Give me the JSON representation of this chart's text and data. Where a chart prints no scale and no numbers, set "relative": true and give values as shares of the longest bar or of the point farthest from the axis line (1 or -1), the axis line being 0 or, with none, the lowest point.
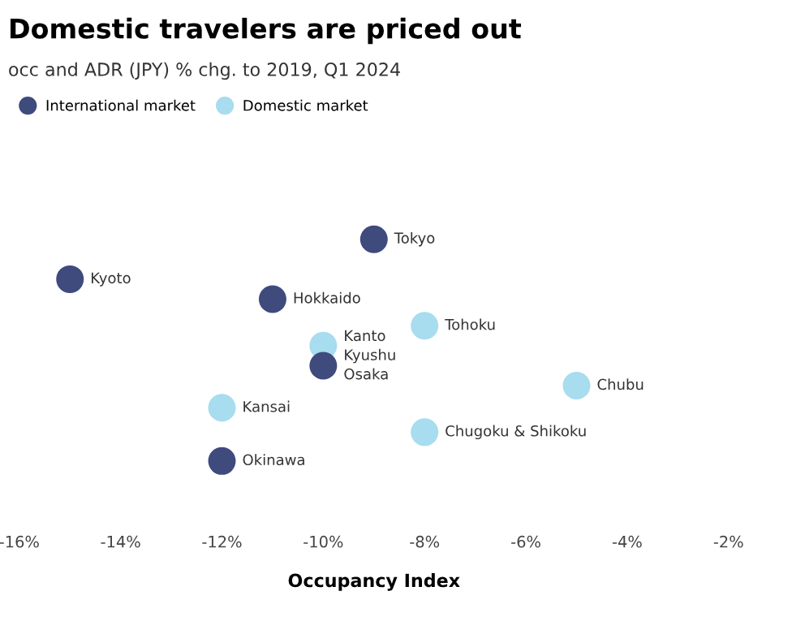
{
  "chart_data": {
    "type": "scatter",
    "title": "Domestic travelers are priced out",
    "subtitle": "occ and ADR (JPY) % chg. to 2019, Q1 2024",
    "xlabel": "Occupancy Index",
    "relative": true,
    "marker": "circle",
    "legend": "top left",
    "grid": false,
    "xlim": [
      -16,
      -2
    ],
    "xticks": [
      {
        "value": -16,
        "label": "-16%"
      },
      {
        "value": -14,
        "label": "-14%"
      },
      {
        "value": -12,
        "label": "-12%"
      },
      {
        "value": -10,
        "label": "-10%"
      },
      {
        "value": -8,
        "label": "-8%"
      },
      {
        "value": -6,
        "label": "-6%"
      },
      {
        "value": -4,
        "label": "-4%"
      },
      {
        "value": -2,
        "label": "-2%"
      }
    ],
    "series": [
      {
        "name": "International market",
        "color": "#3f4a7d",
        "x": [
          -9,
          -15,
          -11,
          -10,
          -12
        ],
        "values": [
          1,
          0.82,
          0.73,
          0.43,
          0
        ]
      },
      {
        "name": "Domestic market",
        "color": "#a8dcef",
        "x": [
          -8,
          -10,
          null,
          -5,
          -12,
          -8
        ],
        "values": [
          0.61,
          0.52,
          null,
          0.34,
          0.24,
          0.13
        ]
      }
    ],
    "annotations": [
      {
        "text": "Tokyo",
        "x": -9,
        "y": 1
      },
      {
        "text": "Kyoto",
        "x": -15,
        "y": 0.82
      },
      {
        "text": "Hokkaido",
        "x": -11,
        "y": 0.73
      },
      {
        "text": "Osaka",
        "x": -10,
        "y": 0.43
      },
      {
        "text": "Okinawa",
        "x": -12,
        "y": 0
      },
      {
        "text": "Tohoku",
        "x": -8,
        "y": 0.61
      },
      {
        "text": "Kanto",
        "x": -10,
        "y": 0.52
      },
      {
        "text": "Kyushu",
        "x": -10,
        "y": 0.47
      },
      {
        "text": "Chubu",
        "x": -5,
        "y": 0.34
      },
      {
        "text": "Kansai",
        "x": -12,
        "y": 0.24
      },
      {
        "text": "Chugoku & Shikoku",
        "x": -8,
        "y": 0.13
      }
    ]
  }
}
